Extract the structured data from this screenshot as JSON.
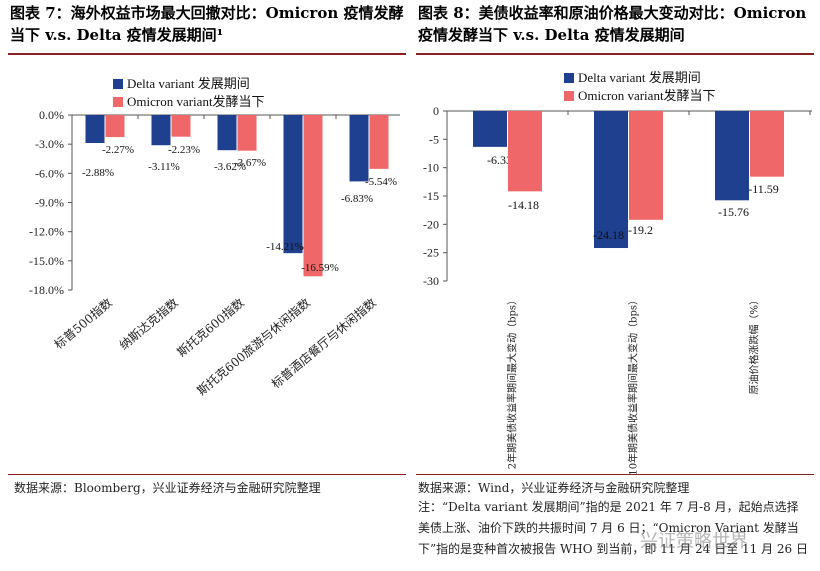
{
  "left": {
    "title": "图表 7：海外权益市场最大回撤对比：Omicron 疫情发酵当下 v.s. Delta 疫情发展期间¹",
    "source": "数据来源：Bloomberg，兴业证券经济与金融研究院整理"
  },
  "right": {
    "title": "图表 8：美债收益率和原油价格最大变动对比：Omicron 疫情发酵当下 v.s. Delta 疫情发展期间",
    "source": "数据来源：Wind，兴业证券经济与金融研究院整理",
    "note": "注：“Delta variant 发展期间”指的是 2021 年 7 月-8 月，起始点选择美债上涨、油价下跌的共振时间 7 月 6 日；“Omicron Variant 发酵当下”指的是变种首次被报告 WHO 到当前，即 11 月 24 日至 11 月 26 日"
  },
  "watermark": "兴证策略世界",
  "colors": {
    "delta": "#1f3f8f",
    "omicron": "#f0676a",
    "axis": "#555555",
    "rule": "#8a2020"
  },
  "chart_data": [
    {
      "type": "bar",
      "categories": [
        "标普500指数",
        "纳斯达克指数",
        "斯托克600指数",
        "斯托克600旅游与休闲指数",
        "标普酒店餐厅与休闲指数"
      ],
      "series": [
        {
          "name": "Delta variant 发展期间",
          "values": [
            -2.88,
            -3.11,
            -3.62,
            -14.21,
            -6.83
          ],
          "labels": [
            "-2.88%",
            "-3.11%",
            "-3.62%",
            "-14.21%",
            "-6.83%"
          ]
        },
        {
          "name": "Omicron variant发酵当下",
          "values": [
            -2.27,
            -2.23,
            -3.67,
            -16.59,
            -5.54
          ],
          "labels": [
            "-2.27%",
            "-2.23%",
            "-3.67%",
            "-16.59%",
            "-5.54%"
          ]
        }
      ],
      "ylim": [
        -18,
        0
      ],
      "yticks": [
        "0.0%",
        "-3.0%",
        "-6.0%",
        "-9.0%",
        "-12.0%",
        "-15.0%",
        "-18.0%"
      ],
      "legend": "top-center"
    },
    {
      "type": "bar",
      "categories": [
        "2年期美债收益率期间最大变动（bps）",
        "10年期美债收益率期间最大变动（bps）",
        "原油价格涨跌幅（%）"
      ],
      "series": [
        {
          "name": "Delta variant 发展期间",
          "values": [
            -6.33,
            -24.18,
            -15.76
          ],
          "labels": [
            "-6.33",
            "-24.18",
            "-15.76"
          ]
        },
        {
          "name": "Omicron variant发酵当下",
          "values": [
            -14.18,
            -19.2,
            -11.59
          ],
          "labels": [
            "-14.18",
            "-19.2",
            "-11.59"
          ]
        }
      ],
      "ylim": [
        -30,
        0
      ],
      "yticks": [
        "0",
        "-5",
        "-10",
        "-15",
        "-20",
        "-25",
        "-30"
      ],
      "legend": "top-center"
    }
  ]
}
